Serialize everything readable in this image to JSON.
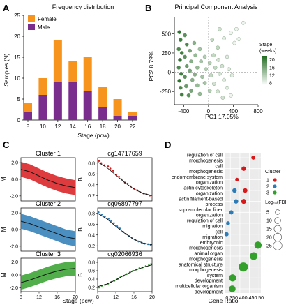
{
  "panels": {
    "A": {
      "letter": "A",
      "chart_data": {
        "type": "bar",
        "title": "Frequency distribution",
        "xlabel": "Stage (pcw)",
        "ylabel": "Samples (N)",
        "ylim": [
          0,
          25
        ],
        "yticks": [
          0,
          5,
          10,
          15,
          20,
          25
        ],
        "categories": [
          "8",
          "10",
          "12",
          "14",
          "16",
          "18",
          "20",
          "22"
        ],
        "stacked": true,
        "legend_position": "top-left",
        "series": [
          {
            "name": "Male",
            "color": "#7B2D8E",
            "values": [
              2,
              6,
              9,
              9,
              7,
              3,
              1,
              1
            ]
          },
          {
            "name": "Female",
            "color": "#F7941D",
            "values": [
              2,
              4,
              10,
              5,
              8,
              5,
              4,
              1
            ]
          }
        ]
      }
    },
    "B": {
      "letter": "B",
      "chart_data": {
        "type": "scatter",
        "title": "Principal Component Analysis",
        "xlabel": "PC1 17.05%",
        "ylabel": "PC2 8.79%",
        "xlim": [
          -550,
          800
        ],
        "ylim": [
          -420,
          720
        ],
        "xticks": [
          -400,
          0,
          400,
          800
        ],
        "yticks": [
          -250,
          0,
          250,
          500
        ],
        "colorbar": {
          "title": "Stage\n(weeks)",
          "ticks": [
            8,
            12,
            16,
            20
          ],
          "range": [
            7,
            22
          ],
          "low_color": "#ffffff",
          "high_color": "#1f6b1f"
        },
        "points": [
          {
            "x": -470,
            "y": 520,
            "s": 21
          },
          {
            "x": -450,
            "y": 420,
            "s": 20
          },
          {
            "x": -480,
            "y": 300,
            "s": 19
          },
          {
            "x": -430,
            "y": 250,
            "s": 20
          },
          {
            "x": -460,
            "y": 160,
            "s": 21
          },
          {
            "x": -480,
            "y": 60,
            "s": 19
          },
          {
            "x": -440,
            "y": -20,
            "s": 20
          },
          {
            "x": -470,
            "y": -110,
            "s": 21
          },
          {
            "x": -450,
            "y": -200,
            "s": 19
          },
          {
            "x": -430,
            "y": -290,
            "s": 20
          },
          {
            "x": -380,
            "y": 480,
            "s": 18
          },
          {
            "x": -350,
            "y": 360,
            "s": 19
          },
          {
            "x": -380,
            "y": 200,
            "s": 18
          },
          {
            "x": -350,
            "y": 80,
            "s": 17
          },
          {
            "x": -380,
            "y": -60,
            "s": 18
          },
          {
            "x": -360,
            "y": -180,
            "s": 17
          },
          {
            "x": -320,
            "y": -300,
            "s": 18
          },
          {
            "x": -300,
            "y": 280,
            "s": 16
          },
          {
            "x": -280,
            "y": 140,
            "s": 15
          },
          {
            "x": -300,
            "y": 20,
            "s": 16
          },
          {
            "x": -260,
            "y": -100,
            "s": 15
          },
          {
            "x": -280,
            "y": -240,
            "s": 16
          },
          {
            "x": -230,
            "y": 380,
            "s": 15
          },
          {
            "x": -210,
            "y": 220,
            "s": 14
          },
          {
            "x": -180,
            "y": 60,
            "s": 14
          },
          {
            "x": -220,
            "y": -30,
            "s": 15
          },
          {
            "x": -180,
            "y": -170,
            "s": 14
          },
          {
            "x": -140,
            "y": 300,
            "s": 13
          },
          {
            "x": -120,
            "y": 140,
            "s": 13
          },
          {
            "x": -100,
            "y": -60,
            "s": 13
          },
          {
            "x": -140,
            "y": -280,
            "s": 14
          },
          {
            "x": -60,
            "y": 200,
            "s": 12
          },
          {
            "x": -40,
            "y": 40,
            "s": 12
          },
          {
            "x": -60,
            "y": -140,
            "s": 13
          },
          {
            "x": 20,
            "y": 120,
            "s": 12
          },
          {
            "x": 40,
            "y": -40,
            "s": 11
          },
          {
            "x": 20,
            "y": -240,
            "s": 12
          },
          {
            "x": 80,
            "y": 220,
            "s": 11
          },
          {
            "x": 110,
            "y": 60,
            "s": 11
          },
          {
            "x": 90,
            "y": -150,
            "s": 10
          },
          {
            "x": 150,
            "y": 320,
            "s": 11
          },
          {
            "x": 160,
            "y": 160,
            "s": 10
          },
          {
            "x": 180,
            "y": -20,
            "s": 10
          },
          {
            "x": 150,
            "y": -250,
            "s": 10
          },
          {
            "x": 220,
            "y": 80,
            "s": 10
          },
          {
            "x": 250,
            "y": -100,
            "s": 9
          },
          {
            "x": 230,
            "y": -330,
            "s": 10
          },
          {
            "x": 300,
            "y": 200,
            "s": 9
          },
          {
            "x": 330,
            "y": 40,
            "s": 9
          },
          {
            "x": 300,
            "y": -200,
            "s": 9
          },
          {
            "x": 380,
            "y": -40,
            "s": 9
          },
          {
            "x": 360,
            "y": -300,
            "s": 8
          },
          {
            "x": 250,
            "y": 440,
            "s": 9
          },
          {
            "x": 360,
            "y": 510,
            "s": 8
          },
          {
            "x": 450,
            "y": 560,
            "s": 8
          },
          {
            "x": 420,
            "y": 380,
            "s": 8
          },
          {
            "x": 490,
            "y": 430,
            "s": 8
          },
          {
            "x": 560,
            "y": 640,
            "s": 8
          },
          {
            "x": 180,
            "y": 560,
            "s": 10
          },
          {
            "x": 60,
            "y": 420,
            "s": 11
          }
        ]
      }
    },
    "C": {
      "letter": "C",
      "xlabel": "Stage (pcw)",
      "chart_data": [
        {
          "type": "line",
          "title": "Cluster 1",
          "ylabel": "M",
          "color": "#D7191C",
          "xlim": [
            8,
            20
          ],
          "ylim": [
            -2.6,
            2.6
          ],
          "yticks": [
            -2.0,
            0.0,
            2.0
          ],
          "x": [
            8,
            10,
            12,
            14,
            16,
            18,
            20
          ],
          "mean": [
            1.2,
            0.9,
            0.4,
            -0.1,
            -0.5,
            -0.8,
            -1.0
          ],
          "band": 0.9
        },
        {
          "type": "line",
          "title": "cg14717659",
          "ylabel": "B",
          "color": "#D7191C",
          "xlim": [
            8,
            20
          ],
          "ylim": [
            0.1,
            0.9
          ],
          "yticks": [
            0.2,
            0.4,
            0.6,
            0.8
          ],
          "x": [
            8,
            10,
            12,
            14,
            16,
            18,
            20
          ],
          "fit": [
            0.82,
            0.72,
            0.58,
            0.44,
            0.32,
            0.24,
            0.2
          ],
          "points": [
            [
              8.3,
              0.84
            ],
            [
              8.8,
              0.8
            ],
            [
              9.5,
              0.76
            ],
            [
              10.3,
              0.74
            ],
            [
              10.8,
              0.7
            ],
            [
              11.4,
              0.66
            ],
            [
              12.1,
              0.58
            ],
            [
              12.7,
              0.55
            ],
            [
              13.3,
              0.5
            ],
            [
              14,
              0.44
            ],
            [
              14.6,
              0.42
            ],
            [
              15.3,
              0.37
            ],
            [
              16,
              0.33
            ],
            [
              16.7,
              0.3
            ],
            [
              17.4,
              0.26
            ],
            [
              18.1,
              0.24
            ],
            [
              18.8,
              0.22
            ],
            [
              19.5,
              0.2
            ]
          ]
        },
        {
          "type": "line",
          "title": "Cluster 2",
          "ylabel": "M",
          "color": "#2C7BB6",
          "xlim": [
            8,
            20
          ],
          "ylim": [
            -2.6,
            2.6
          ],
          "yticks": [
            -2.0,
            0.0,
            2.0
          ],
          "x": [
            8,
            10,
            12,
            14,
            16,
            18,
            20
          ],
          "mean": [
            1.0,
            0.7,
            0.3,
            -0.1,
            -0.5,
            -0.9,
            -1.1
          ],
          "band": 0.9
        },
        {
          "type": "line",
          "title": "cg06897797",
          "ylabel": "B",
          "color": "#2C7BB6",
          "xlim": [
            8,
            20
          ],
          "ylim": [
            0.1,
            0.9
          ],
          "yticks": [
            0.2,
            0.4,
            0.6,
            0.8
          ],
          "x": [
            8,
            10,
            12,
            14,
            16,
            18,
            20
          ],
          "fit": [
            0.8,
            0.7,
            0.56,
            0.43,
            0.32,
            0.25,
            0.22
          ],
          "points": [
            [
              8.2,
              0.82
            ],
            [
              8.9,
              0.78
            ],
            [
              9.6,
              0.74
            ],
            [
              10.4,
              0.7
            ],
            [
              11,
              0.66
            ],
            [
              11.6,
              0.62
            ],
            [
              12.3,
              0.56
            ],
            [
              12.9,
              0.52
            ],
            [
              13.6,
              0.46
            ],
            [
              14.2,
              0.42
            ],
            [
              14.9,
              0.38
            ],
            [
              15.6,
              0.34
            ],
            [
              16.3,
              0.31
            ],
            [
              17,
              0.28
            ],
            [
              17.7,
              0.26
            ],
            [
              18.4,
              0.24
            ],
            [
              19.1,
              0.23
            ],
            [
              19.7,
              0.21
            ]
          ]
        },
        {
          "type": "line",
          "title": "Cluster 3",
          "ylabel": "M",
          "color": "#33A02C",
          "xlim": [
            8,
            20
          ],
          "ylim": [
            -2.6,
            2.6
          ],
          "yticks": [
            -2.0,
            0.0,
            2.0
          ],
          "x": [
            8,
            10,
            12,
            14,
            16,
            18,
            20
          ],
          "mean": [
            -1.2,
            -0.8,
            -0.3,
            0.2,
            0.6,
            0.9,
            1.0
          ],
          "band": 1.1
        },
        {
          "type": "line",
          "title": "cg02066936",
          "ylabel": "B",
          "color": "#33A02C",
          "xlim": [
            8,
            20
          ],
          "ylim": [
            0.1,
            0.9
          ],
          "yticks": [
            0.2,
            0.4,
            0.6,
            0.8
          ],
          "x": [
            8,
            10,
            12,
            14,
            16,
            18,
            20
          ],
          "fit": [
            0.22,
            0.28,
            0.38,
            0.5,
            0.6,
            0.68,
            0.74
          ],
          "points": [
            [
              8.3,
              0.2
            ],
            [
              8.9,
              0.24
            ],
            [
              9.6,
              0.26
            ],
            [
              10.3,
              0.29
            ],
            [
              11,
              0.33
            ],
            [
              11.7,
              0.36
            ],
            [
              12.4,
              0.4
            ],
            [
              13,
              0.44
            ],
            [
              13.7,
              0.48
            ],
            [
              14.4,
              0.52
            ],
            [
              15.1,
              0.56
            ],
            [
              15.8,
              0.6
            ],
            [
              16.5,
              0.63
            ],
            [
              17.2,
              0.66
            ],
            [
              17.9,
              0.68
            ],
            [
              18.6,
              0.71
            ],
            [
              19.3,
              0.73
            ],
            [
              19.8,
              0.76
            ]
          ]
        }
      ]
    },
    "D": {
      "letter": "D",
      "chart_data": {
        "type": "scatter",
        "xlabel": "Gene Ratio",
        "xlim": [
          0.32,
          0.51
        ],
        "xticks": [
          0.35,
          0.4,
          0.45,
          0.5
        ],
        "legend_cluster_title": "Cluster",
        "legend_size_title": "−Log₁₀(FDR)",
        "size_legend": [
          5,
          10,
          15,
          20,
          25
        ],
        "clusters": [
          {
            "name": "1",
            "color": "#D7191C"
          },
          {
            "name": "2",
            "color": "#2C7BB6"
          },
          {
            "name": "3",
            "color": "#33A02C"
          }
        ],
        "categories": [
          "regulation of cell\nmorphogenesis",
          "cell\nmorphogenesis",
          "endomembrane system\norganization",
          "actin cytoskeleton\norganization",
          "actin filament-based\nprocess",
          "supramolecular fiber\norganization",
          "regulation of cell\nmigration",
          "cell\nmigration",
          "embryonic\nmorphogenesis",
          "animal organ\nmorphogenesis",
          "anatomical structure\nmorphogenesis",
          "system\ndevelopment",
          "multicellular organism\ndevelopment"
        ],
        "points": [
          {
            "category": 0,
            "ratio": 0.47,
            "fdr": 2,
            "cluster": "1"
          },
          {
            "category": 1,
            "ratio": 0.42,
            "fdr": 3,
            "cluster": "1"
          },
          {
            "category": 2,
            "ratio": 0.385,
            "fdr": 1.5,
            "cluster": "1"
          },
          {
            "category": 3,
            "ratio": 0.428,
            "fdr": 3,
            "cluster": "1"
          },
          {
            "category": 4,
            "ratio": 0.42,
            "fdr": 4,
            "cluster": "1"
          },
          {
            "category": 3,
            "ratio": 0.372,
            "fdr": 3,
            "cluster": "2"
          },
          {
            "category": 4,
            "ratio": 0.38,
            "fdr": 3,
            "cluster": "2"
          },
          {
            "category": 5,
            "ratio": 0.355,
            "fdr": 2.5,
            "cluster": "2"
          },
          {
            "category": 6,
            "ratio": 0.338,
            "fdr": 2,
            "cluster": "2"
          },
          {
            "category": 7,
            "ratio": 0.33,
            "fdr": 2.5,
            "cluster": "2"
          },
          {
            "category": 8,
            "ratio": 0.495,
            "fdr": 12,
            "cluster": "3"
          },
          {
            "category": 9,
            "ratio": 0.472,
            "fdr": 14,
            "cluster": "3"
          },
          {
            "category": 10,
            "ratio": 0.418,
            "fdr": 22,
            "cluster": "3"
          },
          {
            "category": 11,
            "ratio": 0.362,
            "fdr": 12,
            "cluster": "3"
          },
          {
            "category": 12,
            "ratio": 0.36,
            "fdr": 10,
            "cluster": "3"
          }
        ]
      }
    }
  }
}
